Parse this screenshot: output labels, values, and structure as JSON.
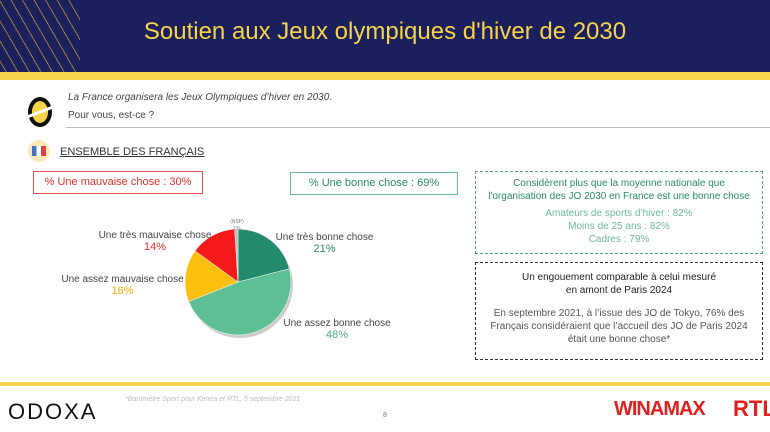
{
  "header": {
    "title": "Soutien aux Jeux olympiques d'hiver de 2030"
  },
  "question": {
    "line1": "La France organisera les Jeux Olympiques d’hiver en 2030.",
    "line2": "Pour vous, est-ce ?"
  },
  "section": "ENSEMBLE DES FRANÇAIS",
  "summary": {
    "bad": "% Une mauvaise chose : 30%",
    "good": "% Une bonne chose : 69%"
  },
  "chart_data": {
    "type": "pie",
    "title": "",
    "slices": [
      {
        "label": "Une très bonne chose",
        "value": 21,
        "display": "21%",
        "color": "#238a6e"
      },
      {
        "label": "Une assez bonne chose",
        "value": 48,
        "display": "48%",
        "color": "#5fbf94"
      },
      {
        "label": "Une assez mauvaise chose",
        "value": 16,
        "display": "16%",
        "color": "#fbbf0f"
      },
      {
        "label": "Une très mauvaise chose",
        "value": 14,
        "display": "14%",
        "color": "#f41a1a"
      },
      {
        "label": "(NSP)",
        "value": 1,
        "display": "1%",
        "color": "#bbbbbb"
      }
    ]
  },
  "box_green": {
    "title1": "Considèrent plus que la moyenne nationale que",
    "title2": "l'organisation des JO 2030 en France est une bonne chose",
    "items": [
      "Amateurs de sports d’hiver : 82%",
      "Moins de 25 ans : 82%",
      "Cadres : 79%"
    ]
  },
  "box_dark": {
    "title1": "Un engouement comparable à celui mesuré",
    "title2": "en amont de Paris 2024",
    "body1": "En septembre 2021, à l’issue des JO de Tokyo, 76% des",
    "body2": "Français considéraient que l’accueil des JO de Paris 2024",
    "body3": "était une bonne chose*"
  },
  "footer": {
    "logo": "ODOXA",
    "source": "*Baromètre Sport pour Kenea et RTL, 5 septembre 2021",
    "page": "8",
    "sponsor1": "WINAMAX",
    "sponsor2": "RTL"
  }
}
